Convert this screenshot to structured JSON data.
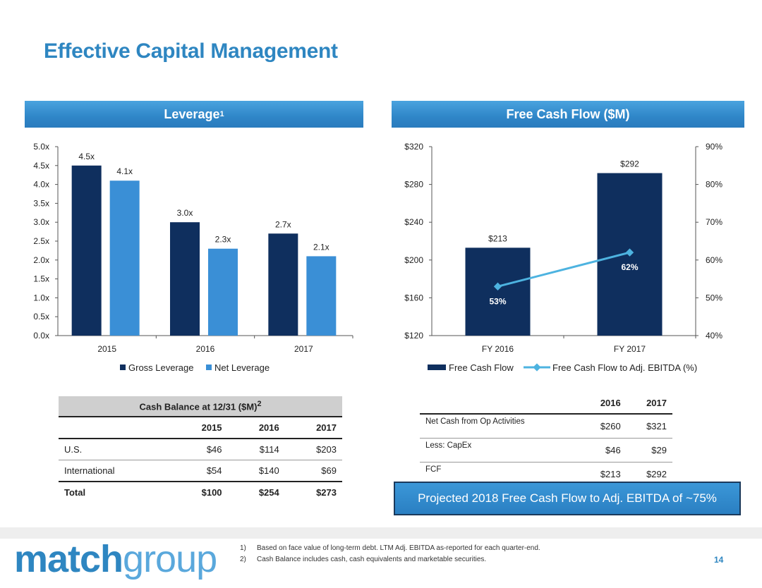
{
  "title": "Effective Capital Management",
  "leverage": {
    "header": "Leverage",
    "header_sup": "1",
    "chart_data": {
      "type": "bar",
      "categories": [
        "2015",
        "2016",
        "2017"
      ],
      "series": [
        {
          "name": "Gross Leverage",
          "values": [
            4.5,
            3.0,
            2.7
          ],
          "labels": [
            "4.5x",
            "3.0x",
            "2.7x"
          ],
          "color": "#0f2f5e"
        },
        {
          "name": "Net Leverage",
          "values": [
            4.1,
            2.3,
            2.1
          ],
          "labels": [
            "4.1x",
            "2.3x",
            "2.1x"
          ],
          "color": "#3a8fd6"
        }
      ],
      "ylim": [
        0,
        5
      ],
      "yticks": [
        "0.0x",
        "0.5x",
        "1.0x",
        "1.5x",
        "2.0x",
        "2.5x",
        "3.0x",
        "3.5x",
        "4.0x",
        "4.5x",
        "5.0x"
      ],
      "legend": "bottom"
    }
  },
  "fcf": {
    "header": "Free Cash Flow ($M)",
    "chart_data": {
      "type": "bar",
      "categories": [
        "FY 2016",
        "FY 2017"
      ],
      "series": [
        {
          "name": "Free Cash Flow",
          "values": [
            213,
            292
          ],
          "labels": [
            "$213",
            "$292"
          ],
          "color": "#0f2f5e",
          "axis": "left"
        },
        {
          "name": "Free Cash Flow to Adj. EBITDA (%)",
          "type": "line",
          "values": [
            53,
            62
          ],
          "labels": [
            "53%",
            "62%"
          ],
          "color": "#4db3e0",
          "axis": "right"
        }
      ],
      "ylim": [
        120,
        320
      ],
      "yticks": [
        "$120",
        "$160",
        "$200",
        "$240",
        "$280",
        "$320"
      ],
      "y2lim": [
        40,
        90
      ],
      "y2ticks": [
        "40%",
        "50%",
        "60%",
        "70%",
        "80%",
        "90%"
      ],
      "legend": "bottom"
    }
  },
  "cash_table": {
    "title": "Cash Balance at 12/31 ($M)",
    "title_sup": "2",
    "years": [
      "2015",
      "2016",
      "2017"
    ],
    "rows": [
      {
        "label": "U.S.",
        "values": [
          "$46",
          "$114",
          "$203"
        ]
      },
      {
        "label": "International",
        "values": [
          "$54",
          "$140",
          "$69"
        ]
      }
    ],
    "total": {
      "label": "Total",
      "values": [
        "$100",
        "$254",
        "$273"
      ]
    }
  },
  "fcf_table": {
    "years": [
      "2016",
      "2017"
    ],
    "rows": [
      {
        "label": "Net Cash from Op Activities",
        "values": [
          "$260",
          "$321"
        ]
      },
      {
        "label": "Less: CapEx",
        "values": [
          "$46",
          "$29"
        ]
      },
      {
        "label": "FCF",
        "values": [
          "$213",
          "$292"
        ]
      }
    ]
  },
  "projection": "Projected 2018 Free Cash Flow to Adj. EBITDA of ~75%",
  "logo": {
    "part1": "match",
    "part2": "group"
  },
  "footnotes": [
    {
      "num": "1)",
      "text": "Based on face value of long-term debt. LTM Adj. EBITDA as-reported for each quarter-end."
    },
    {
      "num": "2)",
      "text": "Cash Balance includes cash, cash equivalents and marketable securities."
    }
  ],
  "page_number": "14"
}
